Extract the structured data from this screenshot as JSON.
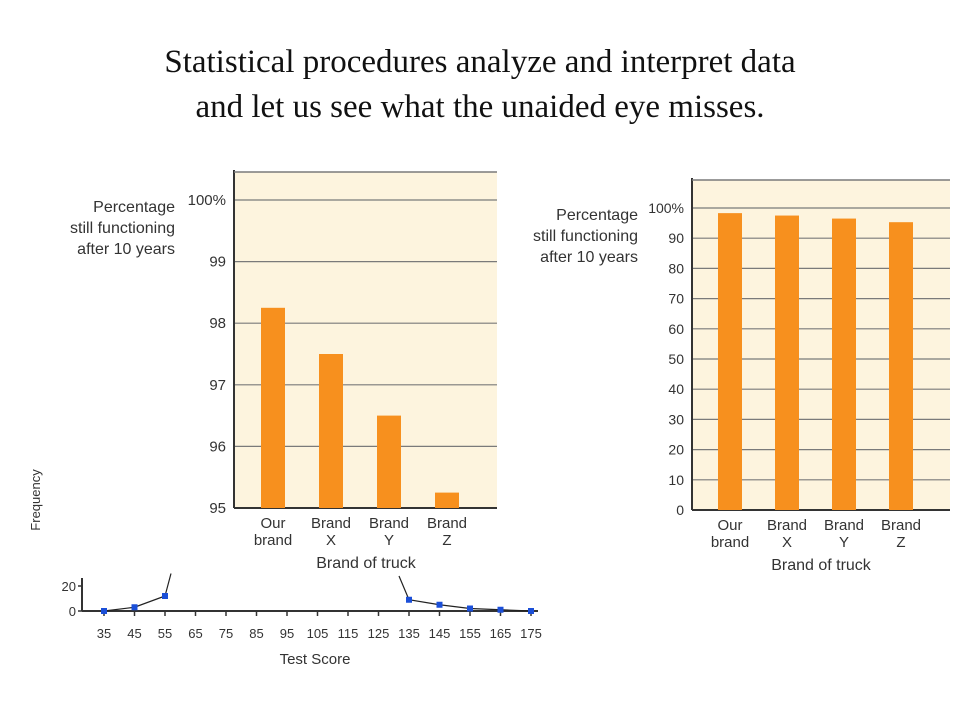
{
  "slide": {
    "title_line1": "Statistical procedures analyze and interpret data",
    "title_line2": "and let us see what the unaided eye misses."
  },
  "colors": {
    "bar": "#f7901e",
    "panel_bg": "#fdf4de",
    "grid": "#7a7a7a",
    "axis": "#333333",
    "text": "#333333",
    "marker": "#1b4fd8"
  },
  "chart_data": [
    {
      "id": "truncated",
      "type": "bar",
      "ylabel_lines": [
        "Percentage",
        "still functioning",
        "after 10 years"
      ],
      "xlabel": "Brand of truck",
      "categories": [
        [
          "Our",
          "brand"
        ],
        [
          "Brand",
          "X"
        ],
        [
          "Brand",
          "Y"
        ],
        [
          "Brand",
          "Z"
        ]
      ],
      "values": [
        98.25,
        97.5,
        96.5,
        95.25
      ],
      "ylim": [
        95,
        100
      ],
      "yticks": [
        "95",
        "96",
        "97",
        "98",
        "99",
        "100%"
      ],
      "grid": true
    },
    {
      "id": "full",
      "type": "bar",
      "ylabel_lines": [
        "Percentage",
        "still functioning",
        "after 10 years"
      ],
      "xlabel": "Brand of truck",
      "categories": [
        [
          "Our",
          "brand"
        ],
        [
          "Brand",
          "X"
        ],
        [
          "Brand",
          "Y"
        ],
        [
          "Brand",
          "Z"
        ]
      ],
      "values": [
        98.3,
        97.5,
        96.5,
        95.3
      ],
      "ylim": [
        0,
        100
      ],
      "yticks": [
        "0",
        "10",
        "20",
        "30",
        "40",
        "50",
        "60",
        "70",
        "80",
        "90",
        "100%"
      ],
      "grid": true
    },
    {
      "id": "test-score",
      "type": "line",
      "xlabel": "Test Score",
      "ylabel": "Frequency",
      "yticks": [
        "0",
        "20"
      ],
      "x": [
        35,
        45,
        55,
        65,
        75,
        85,
        95,
        105,
        115,
        125,
        135,
        145,
        155,
        165,
        175
      ],
      "visible_points": [
        {
          "x": 35,
          "y": 0
        },
        {
          "x": 45,
          "y": 3
        },
        {
          "x": 55,
          "y": 12
        },
        {
          "x": 135,
          "y": 9
        },
        {
          "x": 145,
          "y": 5
        },
        {
          "x": 155,
          "y": 2
        },
        {
          "x": 165,
          "y": 1
        },
        {
          "x": 175,
          "y": 0
        }
      ]
    }
  ]
}
